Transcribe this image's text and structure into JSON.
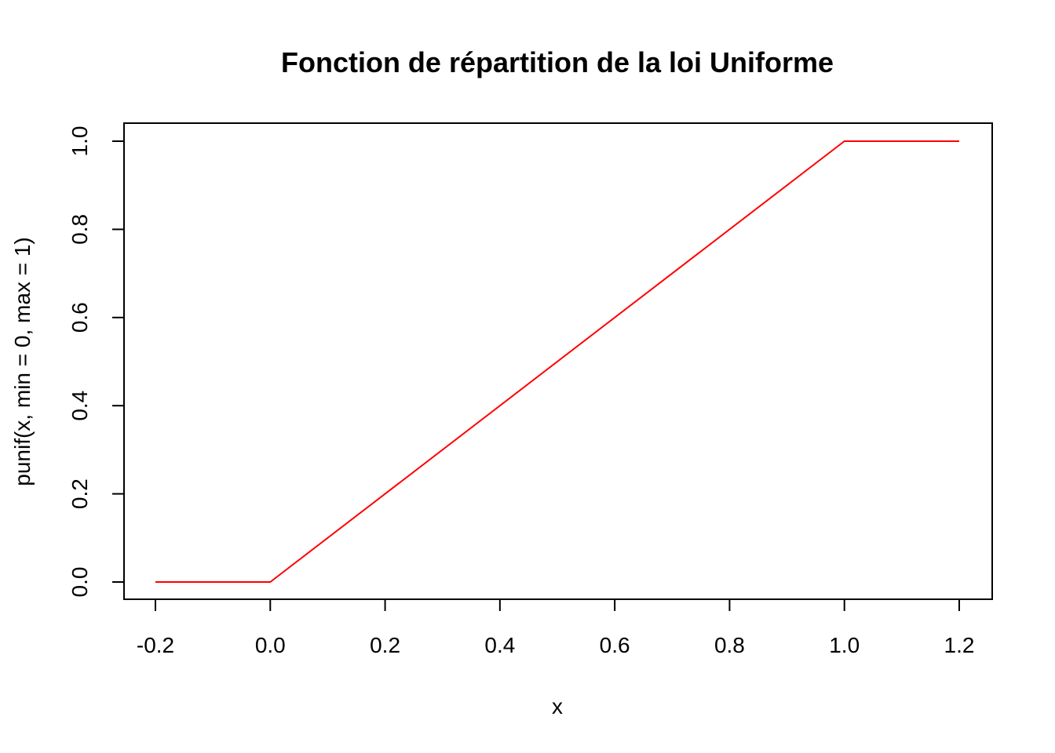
{
  "chart_data": {
    "type": "line",
    "title": "Fonction de répartition de la loi Uniforme",
    "xlabel": "x",
    "ylabel": "punif(x, min = 0, max = 1)",
    "xlim": [
      -0.2,
      1.2
    ],
    "ylim": [
      0.0,
      1.0
    ],
    "x_ticks": [
      "-0.2",
      "0.0",
      "0.2",
      "0.4",
      "0.6",
      "0.8",
      "1.0",
      "1.2"
    ],
    "y_ticks": [
      "0.0",
      "0.2",
      "0.4",
      "0.6",
      "0.8",
      "1.0"
    ],
    "grid": false,
    "legend": "none",
    "series": [
      {
        "color": "#ff0000",
        "x": [
          -0.2,
          0.0,
          0.01,
          0.99,
          1.0,
          1.2
        ],
        "y": [
          0.0,
          0.0,
          0.01,
          0.99,
          1.0,
          1.0
        ]
      }
    ]
  }
}
